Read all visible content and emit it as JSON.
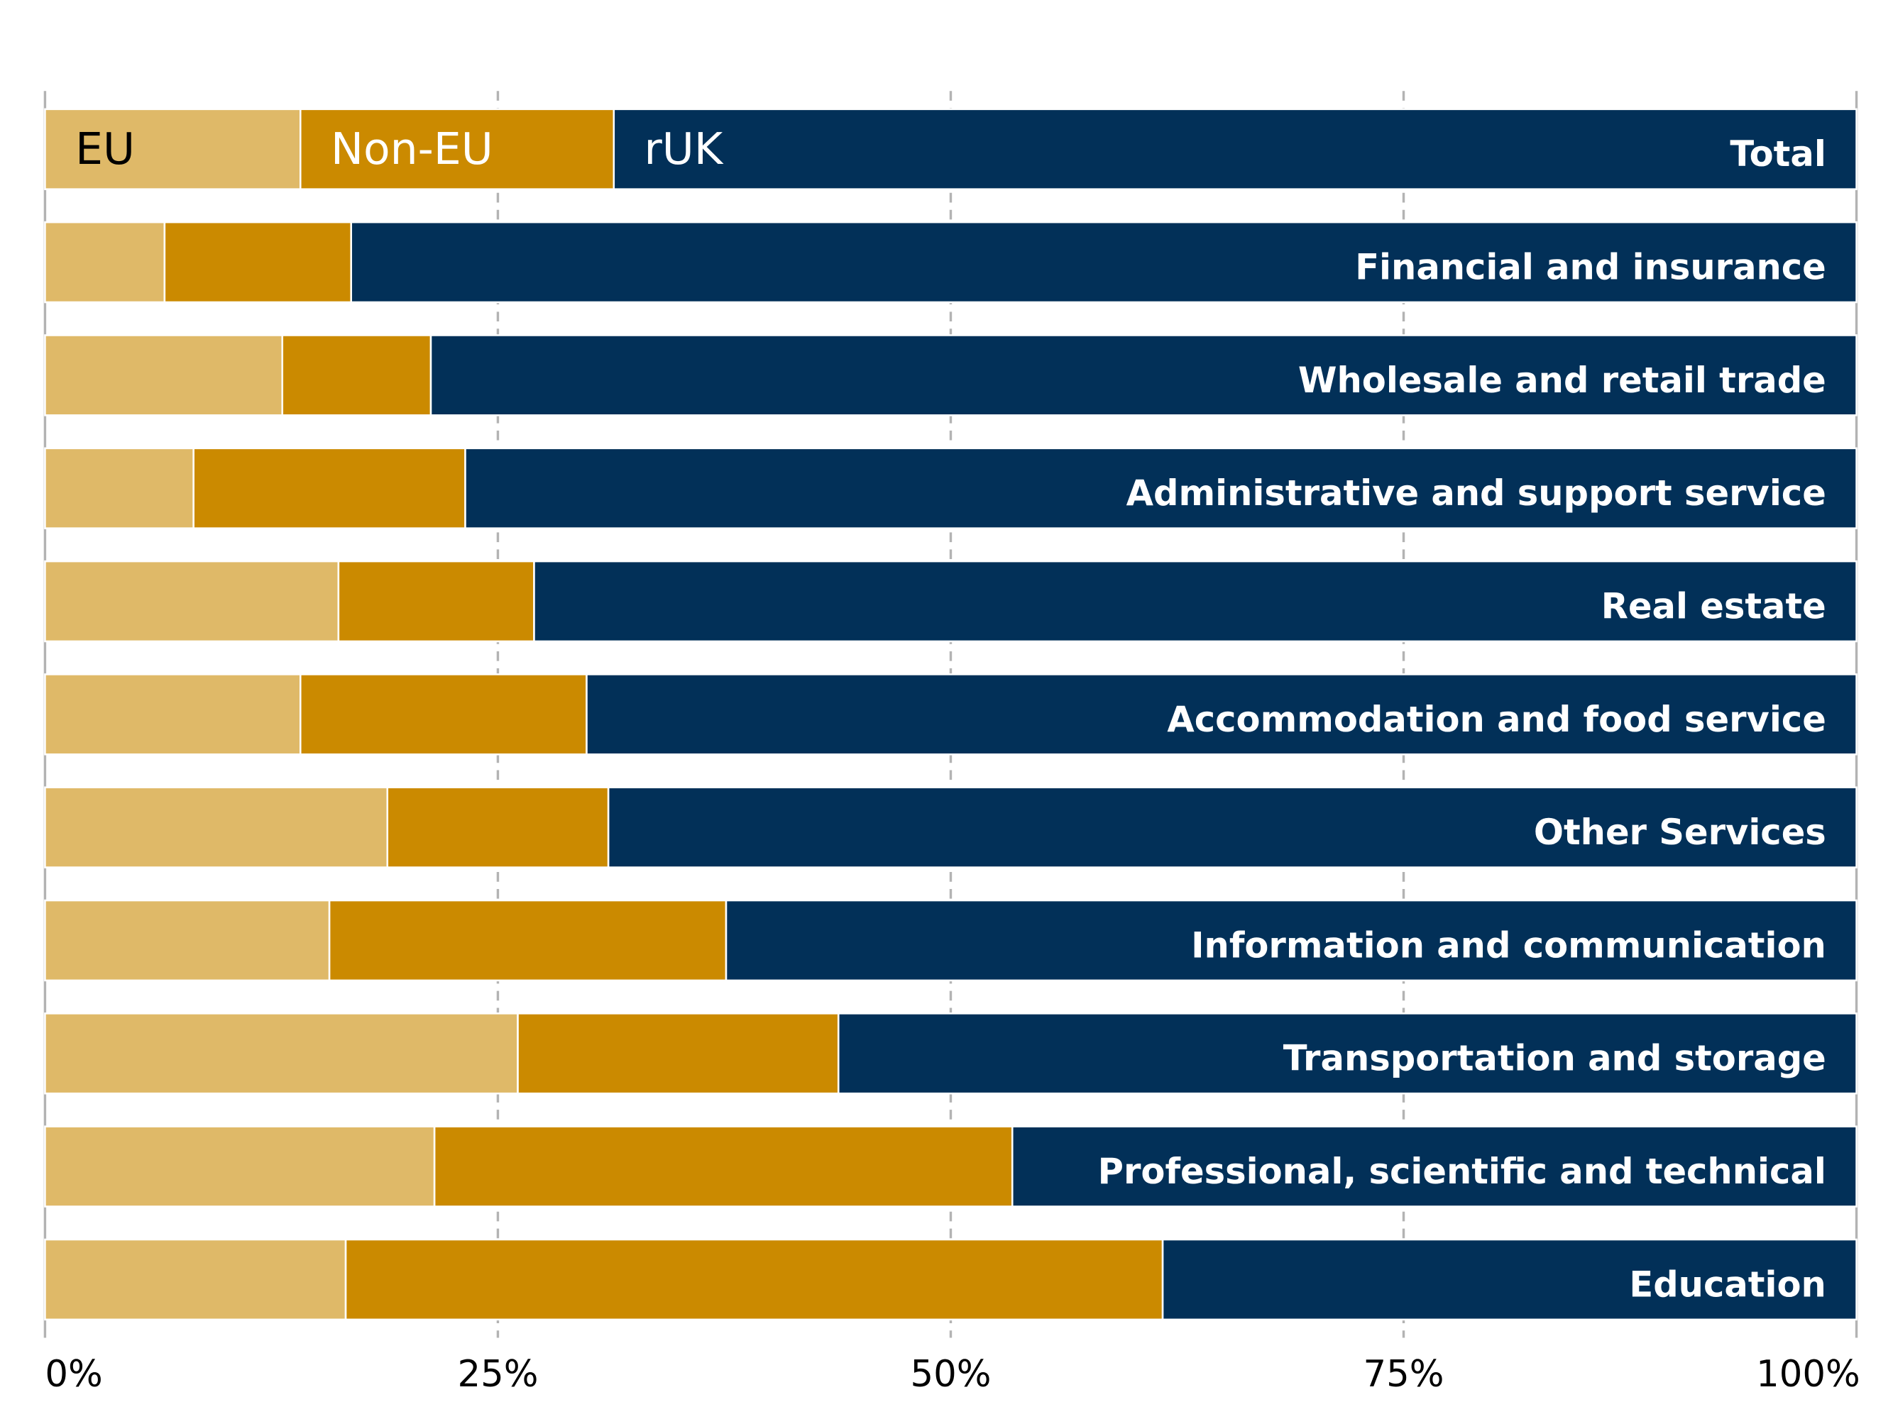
{
  "chart_data": {
    "type": "bar",
    "orientation": "horizontal",
    "stacked": true,
    "categories": [
      "Total",
      "Financial and insurance",
      "Wholesale and retail trade",
      "Administrative and support service",
      "Real estate",
      "Accommodation and food service",
      "Other Services",
      "Information and communication",
      "Transportation and storage",
      "Professional, scientific and technical",
      "Education"
    ],
    "series": [
      {
        "name": "EU",
        "color": "#dfb968",
        "values": [
          14.1,
          6.6,
          13.1,
          8.2,
          16.2,
          14.1,
          18.9,
          15.7,
          26.1,
          21.5,
          16.6
        ]
      },
      {
        "name": "Non-EU",
        "color": "#cb8a00",
        "values": [
          17.3,
          10.3,
          8.2,
          15.0,
          10.8,
          15.8,
          12.2,
          21.9,
          17.7,
          31.9,
          45.1
        ]
      },
      {
        "name": "rUK",
        "color": "#023058",
        "values": [
          68.6,
          83.1,
          78.7,
          76.8,
          73.0,
          70.1,
          68.9,
          62.4,
          56.2,
          46.6,
          38.3
        ]
      }
    ],
    "xlim": [
      0,
      100
    ],
    "xticks": [
      "0%",
      "25%",
      "50%",
      "75%",
      "100%"
    ],
    "grid": true,
    "legend": "inside-first-bar"
  }
}
